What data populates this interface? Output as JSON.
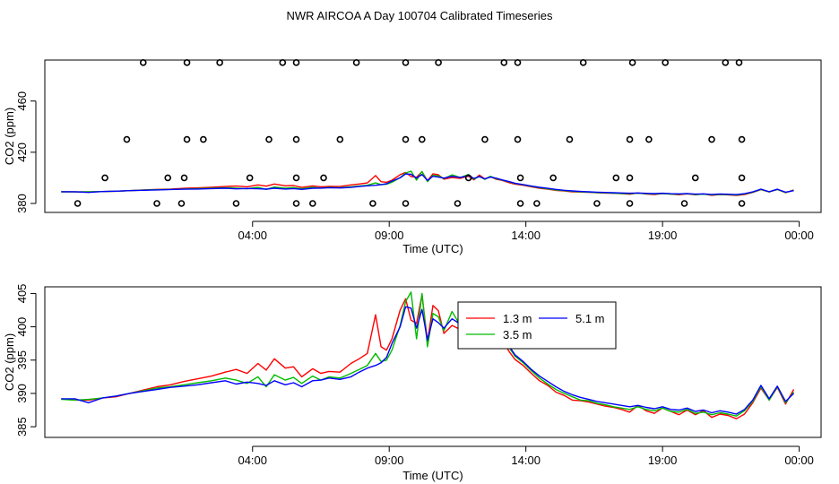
{
  "title": "NWR AIRCOA A  Day 100704  Calibrated Timeseries",
  "colors": {
    "s13": "#ff0000",
    "s35": "#00bb00",
    "s51": "#0000ff",
    "axis": "#000000",
    "points": "#000000"
  },
  "chart_data": [
    {
      "type": "line",
      "xlabel": "Time (UTC)",
      "ylabel": "CO2 (ppm)",
      "x_tick_labels": [
        "04:00",
        "09:00",
        "14:00",
        "19:00",
        "00:00"
      ],
      "x_tick_hours": [
        4,
        9,
        14,
        19,
        24
      ],
      "y_ticks": [
        380,
        420,
        460
      ],
      "y_tick_labels": [
        "380",
        "420",
        "460"
      ],
      "xlim_hours": [
        -3.6,
        24.8
      ],
      "ylim": [
        373,
        492
      ],
      "calibration_points": {
        "description": "open circles at discrete calibration levels",
        "points": [
          [
            -2.4,
            380
          ],
          [
            -1.4,
            400
          ],
          [
            -0.6,
            430
          ],
          [
            0.0,
            490
          ],
          [
            0.5,
            380
          ],
          [
            0.9,
            400
          ],
          [
            1.4,
            380
          ],
          [
            1.5,
            400
          ],
          [
            1.6,
            430
          ],
          [
            1.6,
            490
          ],
          [
            2.2,
            430
          ],
          [
            2.8,
            490
          ],
          [
            3.4,
            380
          ],
          [
            3.9,
            400
          ],
          [
            4.6,
            430
          ],
          [
            5.1,
            490
          ],
          [
            5.6,
            380
          ],
          [
            5.6,
            400
          ],
          [
            5.6,
            430
          ],
          [
            5.6,
            490
          ],
          [
            6.2,
            380
          ],
          [
            6.6,
            400
          ],
          [
            7.2,
            430
          ],
          [
            7.8,
            490
          ],
          [
            8.4,
            380
          ],
          [
            9.6,
            380
          ],
          [
            9.6,
            430
          ],
          [
            9.6,
            490
          ],
          [
            10.2,
            430
          ],
          [
            10.8,
            490
          ],
          [
            11.5,
            380
          ],
          [
            11.9,
            400
          ],
          [
            12.5,
            430
          ],
          [
            13.2,
            490
          ],
          [
            13.7,
            490
          ],
          [
            13.7,
            430
          ],
          [
            13.8,
            400
          ],
          [
            13.8,
            380
          ],
          [
            14.4,
            380
          ],
          [
            15.0,
            400
          ],
          [
            15.6,
            430
          ],
          [
            16.1,
            490
          ],
          [
            16.6,
            380
          ],
          [
            17.3,
            400
          ],
          [
            17.8,
            400
          ],
          [
            17.8,
            380
          ],
          [
            17.8,
            430
          ],
          [
            17.9,
            490
          ],
          [
            18.5,
            430
          ],
          [
            19.1,
            490
          ],
          [
            19.8,
            380
          ],
          [
            20.2,
            400
          ],
          [
            20.8,
            430
          ],
          [
            21.3,
            490
          ],
          [
            21.8,
            490
          ],
          [
            21.9,
            430
          ],
          [
            21.9,
            400
          ],
          [
            21.9,
            380
          ]
        ]
      }
    },
    {
      "type": "line",
      "xlabel": "Time (UTC)",
      "ylabel": "CO2 (ppm)",
      "x_tick_labels": [
        "04:00",
        "09:00",
        "14:00",
        "19:00",
        "00:00"
      ],
      "x_tick_hours": [
        4,
        9,
        14,
        19,
        24
      ],
      "y_ticks": [
        385,
        390,
        395,
        400,
        405
      ],
      "y_tick_labels": [
        "385",
        "390",
        "395",
        "400",
        "405"
      ],
      "xlim_hours": [
        -3.6,
        24.8
      ],
      "ylim": [
        383.4,
        406
      ],
      "legend": {
        "position": "top-right-center",
        "entries": [
          "1.3 m",
          "3.5 m",
          "5.1 m"
        ]
      }
    }
  ],
  "series": [
    {
      "name": "1.3 m",
      "color_key": "s13",
      "x": [
        -3.0,
        -2.5,
        -2.0,
        -1.5,
        -1.0,
        -0.5,
        0.0,
        0.5,
        1.0,
        1.5,
        2.0,
        2.5,
        3.0,
        3.4,
        3.8,
        4.2,
        4.5,
        4.8,
        5.2,
        5.5,
        5.8,
        6.2,
        6.5,
        6.8,
        7.2,
        7.6,
        7.9,
        8.2,
        8.5,
        8.7,
        8.9,
        9.1,
        9.4,
        9.6,
        9.8,
        10.0,
        10.2,
        10.4,
        10.6,
        10.8,
        11.0,
        11.3,
        11.6,
        11.9,
        12.1,
        12.3,
        12.5,
        12.7,
        12.9,
        13.1,
        13.4,
        13.6,
        13.9,
        14.2,
        14.5,
        14.8,
        15.1,
        15.4,
        15.7,
        16.0,
        16.3,
        16.6,
        16.9,
        17.2,
        17.5,
        17.8,
        18.1,
        18.4,
        18.7,
        19.0,
        19.3,
        19.6,
        19.9,
        20.2,
        20.5,
        20.8,
        21.1,
        21.4,
        21.7,
        22.0,
        22.3,
        22.6,
        22.9,
        23.2,
        23.5,
        23.8
      ],
      "values": [
        389.2,
        389.0,
        389.0,
        389.3,
        389.5,
        390.0,
        390.5,
        391.0,
        391.3,
        391.8,
        392.2,
        392.6,
        393.2,
        393.6,
        393.0,
        394.5,
        393.5,
        395.2,
        393.8,
        394.0,
        392.5,
        393.7,
        393.0,
        393.3,
        393.2,
        394.5,
        395.2,
        396.0,
        401.8,
        397.0,
        396.5,
        398.2,
        402.5,
        404.2,
        401.0,
        400.5,
        404.8,
        397.8,
        403.2,
        402.4,
        399.0,
        400.2,
        399.6,
        401.3,
        398.4,
        402.2,
        399.2,
        401.0,
        399.0,
        398.2,
        396.2,
        395.1,
        394.2,
        393.0,
        391.9,
        391.2,
        390.2,
        389.7,
        389.0,
        388.9,
        388.7,
        388.4,
        388.1,
        387.9,
        387.6,
        387.2,
        388.2,
        387.4,
        387.0,
        387.8,
        387.3,
        386.8,
        387.5,
        386.8,
        387.4,
        386.4,
        386.9,
        386.7,
        386.2,
        386.9,
        388.6,
        390.8,
        389.0,
        390.9,
        388.4,
        390.6
      ],
      "_v": ""
    },
    {
      "name": "3.5 m",
      "color_key": "s35",
      "x": [
        -3.0,
        -2.5,
        -2.0,
        -1.5,
        -1.0,
        -0.5,
        0.0,
        0.5,
        1.0,
        1.5,
        2.0,
        2.5,
        3.0,
        3.4,
        3.8,
        4.2,
        4.5,
        4.8,
        5.2,
        5.5,
        5.8,
        6.2,
        6.5,
        6.8,
        7.2,
        7.6,
        7.9,
        8.2,
        8.5,
        8.7,
        8.9,
        9.1,
        9.4,
        9.6,
        9.8,
        10.0,
        10.2,
        10.4,
        10.6,
        10.8,
        11.0,
        11.3,
        11.6,
        11.9,
        12.1,
        12.3,
        12.5,
        12.7,
        12.9,
        13.1,
        13.4,
        13.6,
        13.9,
        14.2,
        14.5,
        14.8,
        15.1,
        15.4,
        15.7,
        16.0,
        16.3,
        16.6,
        16.9,
        17.2,
        17.5,
        17.8,
        18.1,
        18.4,
        18.7,
        19.0,
        19.3,
        19.6,
        19.9,
        20.2,
        20.5,
        20.8,
        21.1,
        21.4,
        21.7,
        22.0,
        22.3,
        22.6,
        22.9,
        23.2,
        23.5,
        23.8
      ],
      "values": [
        389.1,
        389.0,
        389.1,
        389.3,
        389.6,
        390.0,
        390.4,
        390.8,
        391.0,
        391.3,
        391.6,
        391.9,
        392.3,
        392.0,
        391.5,
        392.5,
        391.0,
        392.8,
        392.0,
        392.4,
        391.5,
        392.6,
        392.0,
        392.5,
        392.3,
        393.0,
        393.6,
        394.2,
        396.0,
        394.8,
        395.0,
        396.5,
        400.2,
        403.8,
        405.2,
        398.2,
        405.0,
        397.0,
        402.0,
        401.5,
        399.4,
        402.3,
        400.2,
        402.6,
        399.0,
        401.2,
        398.8,
        401.2,
        399.4,
        398.4,
        396.8,
        395.6,
        394.6,
        393.4,
        392.3,
        391.4,
        390.6,
        390.0,
        389.5,
        389.0,
        388.9,
        388.5,
        388.3,
        388.0,
        387.8,
        387.6,
        388.0,
        387.6,
        387.4,
        387.8,
        387.3,
        387.2,
        387.6,
        387.0,
        387.2,
        386.8,
        387.1,
        386.9,
        386.6,
        387.4,
        388.8,
        391.0,
        389.0,
        391.0,
        388.6,
        390.2
      ],
      "_v": ""
    },
    {
      "name": "5.1 m",
      "color_key": "s51",
      "x": [
        -3.0,
        -2.5,
        -2.0,
        -1.5,
        -1.0,
        -0.5,
        0.0,
        0.5,
        1.0,
        1.5,
        2.0,
        2.5,
        3.0,
        3.4,
        3.8,
        4.2,
        4.5,
        4.8,
        5.2,
        5.5,
        5.8,
        6.2,
        6.5,
        6.8,
        7.2,
        7.6,
        7.9,
        8.2,
        8.5,
        8.7,
        8.9,
        9.1,
        9.4,
        9.6,
        9.8,
        10.0,
        10.2,
        10.4,
        10.6,
        10.8,
        11.0,
        11.3,
        11.6,
        11.9,
        12.1,
        12.3,
        12.5,
        12.7,
        12.9,
        13.1,
        13.4,
        13.6,
        13.9,
        14.2,
        14.5,
        14.8,
        15.1,
        15.4,
        15.7,
        16.0,
        16.3,
        16.6,
        16.9,
        17.2,
        17.5,
        17.8,
        18.1,
        18.4,
        18.7,
        19.0,
        19.3,
        19.6,
        19.9,
        20.2,
        20.5,
        20.8,
        21.1,
        21.4,
        21.7,
        22.0,
        22.3,
        22.6,
        22.9,
        23.2,
        23.5,
        23.8
      ],
      "values": [
        389.2,
        389.2,
        388.6,
        389.3,
        389.6,
        390.0,
        390.3,
        390.6,
        390.9,
        391.1,
        391.3,
        391.6,
        391.9,
        391.4,
        391.7,
        391.5,
        391.2,
        391.9,
        391.3,
        391.6,
        391.0,
        391.9,
        392.0,
        392.3,
        392.1,
        392.5,
        393.2,
        393.8,
        394.2,
        394.6,
        395.4,
        397.5,
        400.0,
        403.0,
        402.8,
        399.8,
        402.6,
        398.0,
        401.2,
        400.6,
        399.8,
        401.2,
        400.4,
        401.8,
        399.6,
        400.9,
        399.2,
        400.6,
        399.8,
        398.6,
        397.0,
        395.8,
        394.8,
        393.6,
        392.6,
        391.8,
        391.0,
        390.3,
        389.8,
        389.4,
        389.1,
        388.8,
        388.6,
        388.4,
        388.2,
        388.0,
        388.2,
        387.9,
        387.7,
        388.0,
        387.6,
        387.5,
        387.8,
        387.3,
        387.5,
        387.1,
        387.4,
        387.2,
        386.9,
        387.6,
        389.0,
        391.2,
        389.2,
        391.1,
        388.8,
        390.0
      ],
      "_v": ""
    }
  ]
}
